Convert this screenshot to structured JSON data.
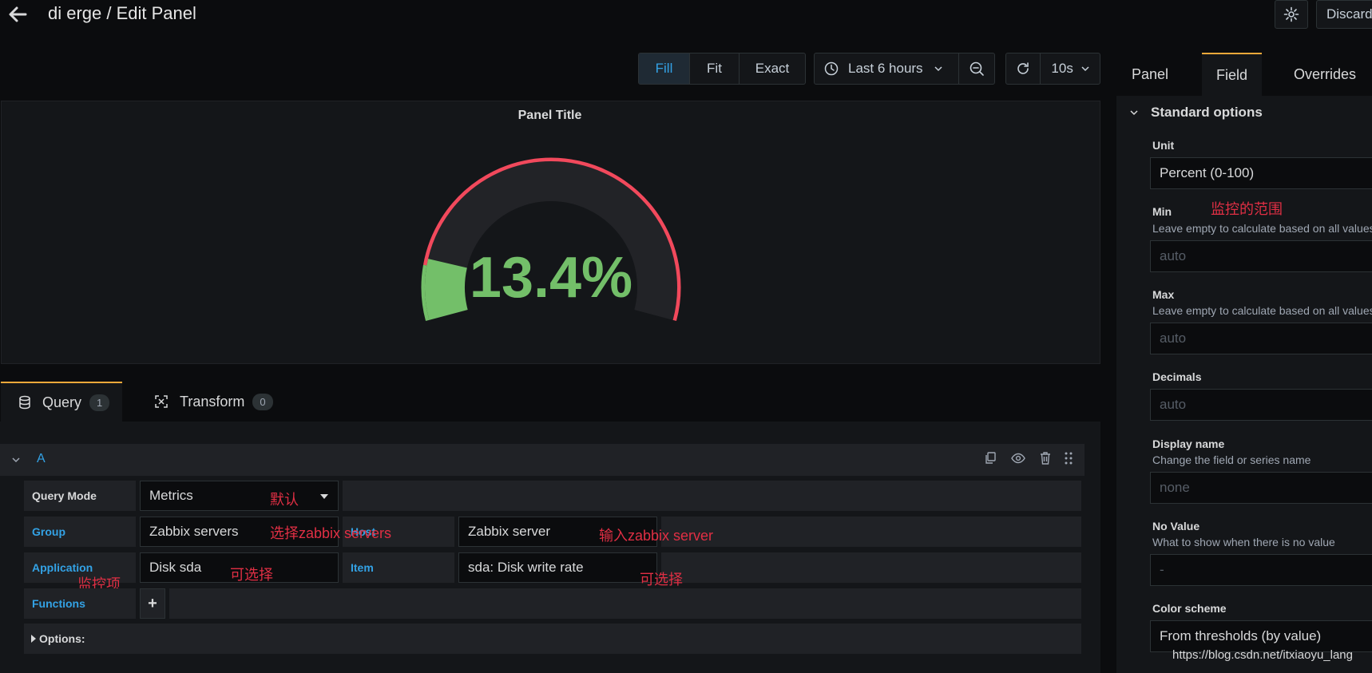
{
  "header": {
    "title": "di erge / Edit Panel",
    "discard_label": "Discard"
  },
  "toolbar": {
    "view_modes": [
      "Fill",
      "Fit",
      "Exact"
    ],
    "active_view_mode": "Fill",
    "time_range": "Last 6 hours",
    "refresh_interval": "10s"
  },
  "panel": {
    "title": "Panel Title",
    "gauge": {
      "value_text": "13.4%",
      "value": 13.4,
      "min": 0,
      "max": 100,
      "value_color": "#73bf69",
      "threshold_color": "#f2495c",
      "track_color": "#222327"
    }
  },
  "query_tabs": [
    {
      "label": "Query",
      "count": "1"
    },
    {
      "label": "Transform",
      "count": "0"
    }
  ],
  "query": {
    "ref_id": "A",
    "rows": {
      "query_mode": {
        "label": "Query Mode",
        "value": "Metrics",
        "note": "默认"
      },
      "group": {
        "label": "Group",
        "value": "Zabbix servers",
        "note": "选择zabbix servers"
      },
      "host": {
        "label": "Host",
        "value": "Zabbix server",
        "note": "输入zabbix server"
      },
      "application": {
        "label": "Application",
        "value": "Disk sda",
        "note": "可选择",
        "side_note": "监控项"
      },
      "item": {
        "label": "Item",
        "value": "sda: Disk write rate",
        "note": "可选择"
      },
      "functions": {
        "label": "Functions",
        "add": "+"
      },
      "options": {
        "label": "Options:"
      }
    }
  },
  "side_pane": {
    "tabs": [
      "Panel",
      "Field",
      "Overrides"
    ],
    "active_tab": "Field",
    "section": "Standard options",
    "unit": {
      "label": "Unit",
      "value": "Percent (0-100)"
    },
    "min": {
      "label": "Min",
      "desc": "Leave empty to calculate based on all values",
      "placeholder": "auto",
      "note": "监控的范围"
    },
    "max": {
      "label": "Max",
      "desc": "Leave empty to calculate based on all values",
      "placeholder": "auto"
    },
    "decimals": {
      "label": "Decimals",
      "placeholder": "auto"
    },
    "display_name": {
      "label": "Display name",
      "desc": "Change the field or series name",
      "placeholder": "none"
    },
    "no_value": {
      "label": "No Value",
      "desc": "What to show when there is no value",
      "placeholder": "-"
    },
    "color_scheme": {
      "label": "Color scheme",
      "value": "From thresholds (by value)"
    }
  },
  "watermark": "https://blog.csdn.net/itxiaoyu_lang"
}
